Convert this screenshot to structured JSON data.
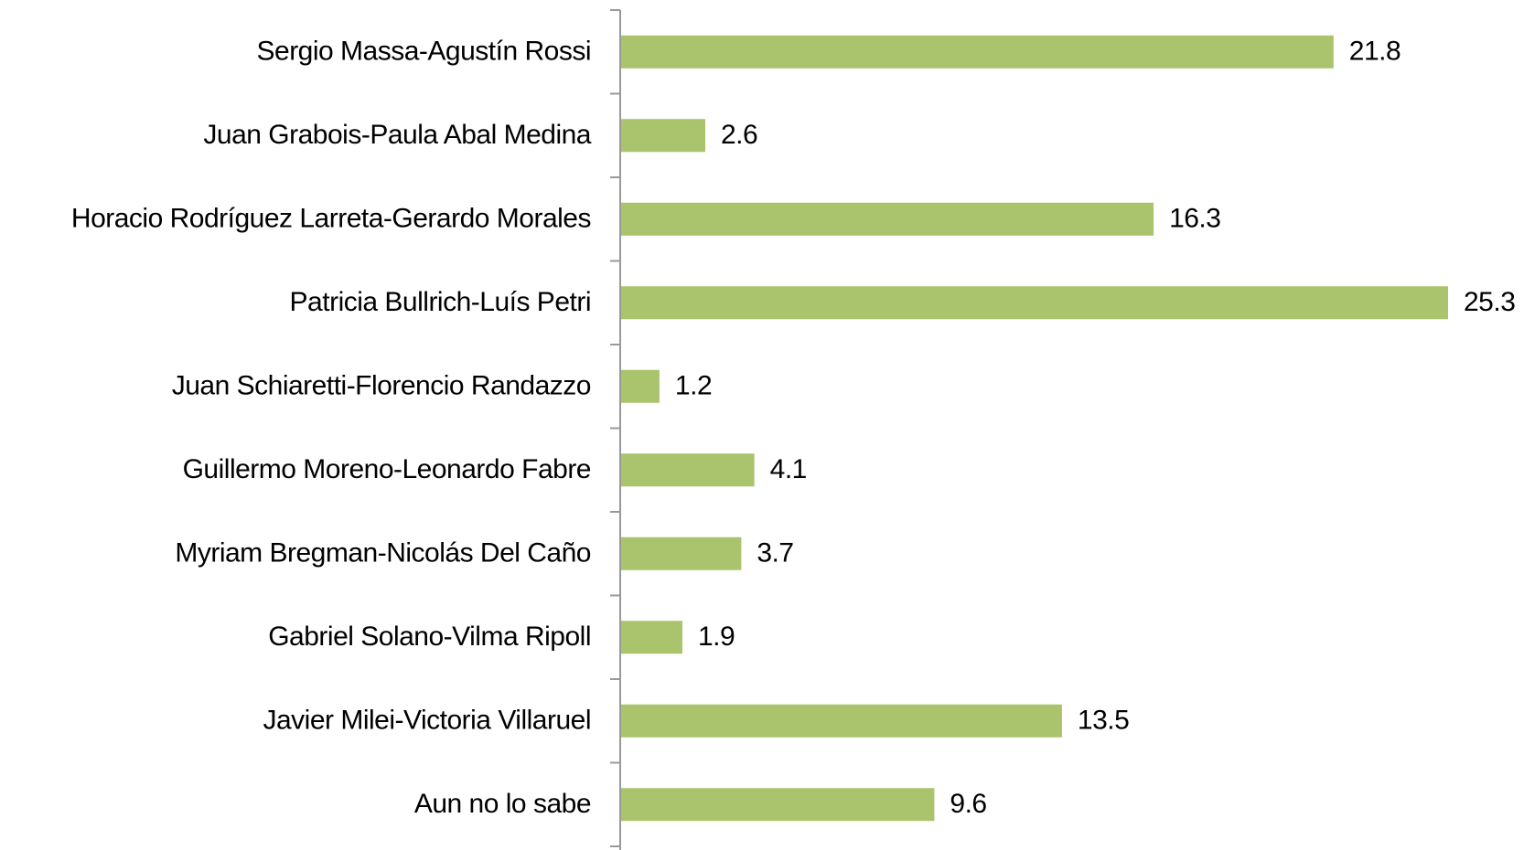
{
  "chart_data": {
    "type": "bar",
    "orientation": "horizontal",
    "categories": [
      "Sergio Massa-Agustín Rossi",
      "Juan Grabois-Paula Abal Medina",
      "Horacio Rodríguez Larreta-Gerardo Morales",
      "Patricia Bullrich-Luís Petri",
      "Juan Schiaretti-Florencio Randazzo",
      "Guillermo Moreno-Leonardo Fabre",
      "Myriam Bregman-Nicolás Del Caño",
      "Gabriel Solano-Vilma Ripoll",
      "Javier Milei-Victoria Villaruel",
      "Aun no lo sabe"
    ],
    "values": [
      21.8,
      2.6,
      16.3,
      25.3,
      1.2,
      4.1,
      3.7,
      1.9,
      13.5,
      9.6
    ],
    "color": "#a9c46c"
  }
}
